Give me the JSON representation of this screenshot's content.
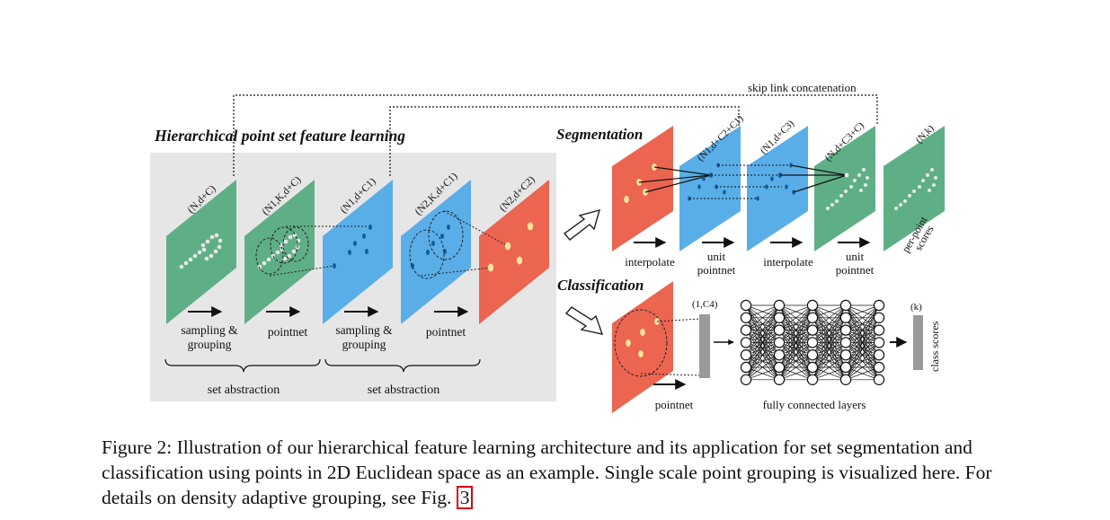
{
  "figure": {
    "hierarchical_title": "Hierarchical point set feature learning",
    "segmentation_title": "Segmentation",
    "classification_title": "Classification",
    "skip_link": "skip link concatenation",
    "hier_planes": [
      "(N,d+C)",
      "(N1,K,d+C)",
      "(N1,d+C1)",
      "(N2,K,d+C1)",
      "(N2,d+C2)"
    ],
    "hier_ops": [
      "sampling &",
      "grouping",
      "pointnet",
      "sampling &",
      "grouping",
      "pointnet"
    ],
    "set_abstraction": [
      "set abstraction",
      "set abstraction"
    ],
    "seg_planes": [
      "(N1,d+C2+C1)",
      "(N1,d+C3)",
      "(N,d+C3+C)",
      "(N,k)"
    ],
    "seg_ops": [
      "interpolate",
      "unit",
      "pointnet",
      "interpolate",
      "unit",
      "pointnet"
    ],
    "per_point": [
      "per-point",
      "scores"
    ],
    "cls_labels": {
      "vec": "(1,C4)",
      "k": "(k)",
      "pointnet": "pointnet",
      "fc": "fully connected layers",
      "class_scores": "class scores"
    },
    "colors": {
      "green": "#5faf86",
      "blue": "#5aaee8",
      "red": "#eb6551",
      "panel": "#e6e6e6",
      "grey_bar": "#9a9a9a"
    }
  },
  "caption": {
    "text": "Figure 2: Illustration of our hierarchical feature learning architecture and its application for set segmentation and classification using points in 2D Euclidean space as an example. Single scale point grouping is visualized here. For details on density adaptive grouping, see Fig.",
    "figref": "3"
  }
}
